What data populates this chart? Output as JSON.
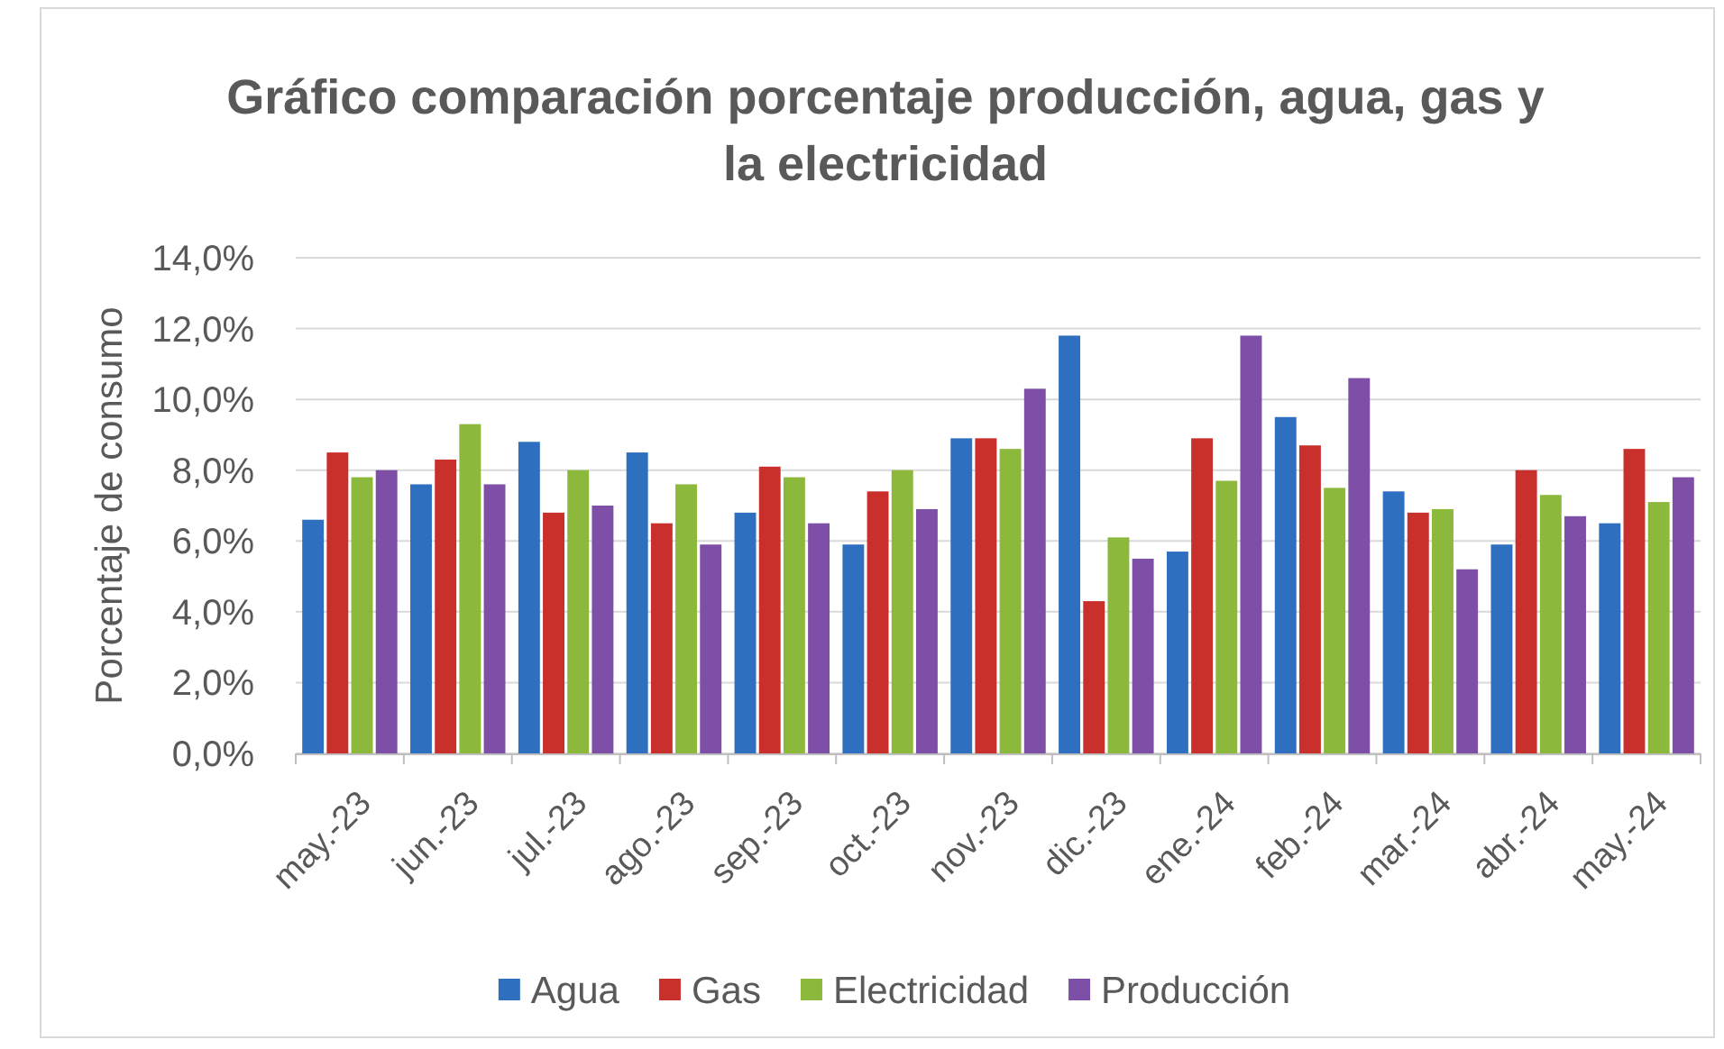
{
  "chart_data": {
    "type": "bar",
    "title": "Gráfico comparación porcentaje producción, agua, gas y la electricidad",
    "ylabel": "Porcentaje de consumo",
    "categories": [
      "may.-23",
      "jun.-23",
      "jul.-23",
      "ago.-23",
      "sep.-23",
      "oct.-23",
      "nov.-23",
      "dic.-23",
      "ene.-24",
      "feb.-24",
      "mar.-24",
      "abr.-24",
      "may.-24"
    ],
    "series": [
      {
        "name": "Agua",
        "color": "#2f6fbf",
        "values": [
          6.6,
          7.6,
          8.8,
          8.5,
          6.8,
          5.9,
          8.9,
          11.8,
          5.7,
          9.5,
          7.4,
          5.9,
          6.5
        ]
      },
      {
        "name": "Gas",
        "color": "#c9302c",
        "values": [
          8.5,
          8.3,
          6.8,
          6.5,
          8.1,
          7.4,
          8.9,
          4.3,
          8.9,
          8.7,
          6.8,
          8.0,
          8.6
        ]
      },
      {
        "name": "Electricidad",
        "color": "#8cb83c",
        "values": [
          7.8,
          9.3,
          8.0,
          7.6,
          7.8,
          8.0,
          8.6,
          6.1,
          7.7,
          7.5,
          6.9,
          7.3,
          7.1
        ]
      },
      {
        "name": "Producción",
        "color": "#7e4fa6",
        "values": [
          8.0,
          7.6,
          7.0,
          5.9,
          6.5,
          6.9,
          10.3,
          5.5,
          11.8,
          10.6,
          5.2,
          6.7,
          7.8
        ]
      }
    ],
    "ylim": [
      0,
      14
    ],
    "yticks": [
      {
        "value": 0,
        "label": "0,0%"
      },
      {
        "value": 2,
        "label": "2,0%"
      },
      {
        "value": 4,
        "label": "4,0%"
      },
      {
        "value": 6,
        "label": "6,0%"
      },
      {
        "value": 8,
        "label": "8,0%"
      },
      {
        "value": 10,
        "label": "10,0%"
      },
      {
        "value": 12,
        "label": "12,0%"
      },
      {
        "value": 14,
        "label": "14,0%"
      }
    ],
    "grid": "y",
    "legend": "bottom"
  }
}
